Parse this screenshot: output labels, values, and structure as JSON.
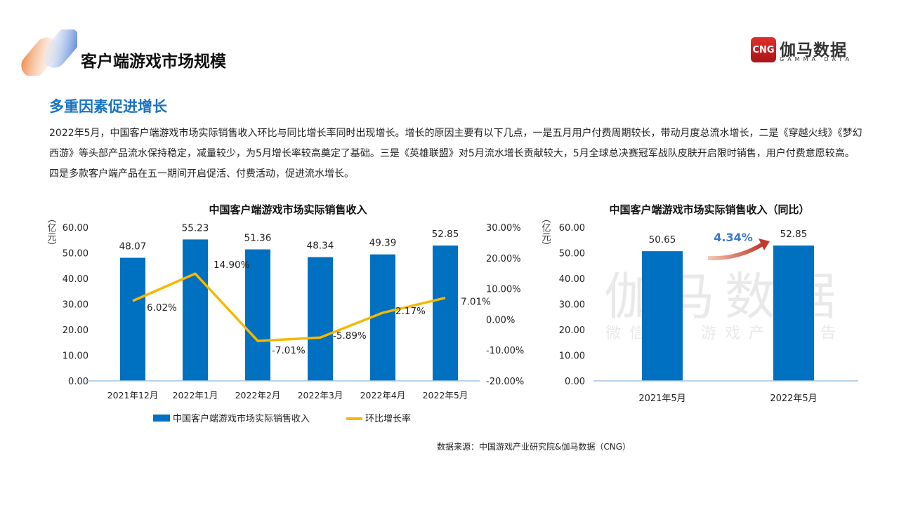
{
  "header": {
    "title": "客户端游戏市场规模",
    "logo_text": "伽马数据",
    "logo_sub": "GAMMA DATA",
    "logo_mark": "CNG"
  },
  "section": {
    "subtitle": "多重因素促进增长",
    "paragraph": "2022年5月，中国客户端游戏市场实际销售收入环比与同比增长率同时出现增长。增长的原因主要有以下几点，一是五月用户付费周期较长，带动月度总流水增长，二是《穿越火线》《梦幻西游》等头部产品流水保持稳定，减量较少，为5月增长率较高奠定了基础。三是《英雄联盟》对5月流水增长贡献较大，5月全球总决赛冠军战队皮肤开启限时销售，用户付费意愿较高。四是多款客户端产品在五一期间开启促活、付费活动，促进流水增长。"
  },
  "watermark": {
    "main": "伽马数据",
    "sub": "微信号：游戏产业报告"
  },
  "source": "数据来源：中国游戏产业研究院&伽马数据（CNG）",
  "colors": {
    "bar": "#0070c0",
    "line": "#f5b800",
    "axis": "#9dc3e6",
    "accent": "#1a73c0"
  },
  "chart_data": [
    {
      "type": "bar+line",
      "title": "中国客户端游戏市场实际销售收入",
      "ylabel": "（亿元）",
      "categories": [
        "2021年12月",
        "2022年1月",
        "2022年2月",
        "2022年3月",
        "2022年4月",
        "2022年5月"
      ],
      "ylim": [
        0,
        60
      ],
      "yticks": [
        "0.00",
        "10.00",
        "20.00",
        "30.00",
        "40.00",
        "50.00",
        "60.00"
      ],
      "y2lim": [
        -20,
        30
      ],
      "y2ticks": [
        "-20.00%",
        "-10.00%",
        "0.00%",
        "10.00%",
        "20.00%",
        "30.00%"
      ],
      "series": [
        {
          "name": "中国客户端游戏市场实际销售收入",
          "type": "bar",
          "values": [
            48.07,
            55.23,
            51.36,
            48.34,
            49.39,
            52.85
          ],
          "labels": [
            "48.07",
            "55.23",
            "51.36",
            "48.34",
            "49.39",
            "52.85"
          ]
        },
        {
          "name": "环比增长率",
          "type": "line",
          "axis": "right",
          "values": [
            6.02,
            14.9,
            -7.01,
            -5.89,
            2.17,
            7.01
          ],
          "labels": [
            "6.02%",
            "14.90%",
            "-7.01%",
            "-5.89%",
            "2.17%",
            "7.01%"
          ]
        }
      ],
      "legend": "bottom",
      "grid": false
    },
    {
      "type": "bar",
      "title": "中国客户端游戏市场实际销售收入（同比）",
      "ylabel": "（亿元）",
      "categories": [
        "2021年5月",
        "2022年5月"
      ],
      "values": [
        50.65,
        52.85
      ],
      "labels": [
        "50.65",
        "52.85"
      ],
      "ylim": [
        0,
        60
      ],
      "yticks": [
        "0.00",
        "10.00",
        "20.00",
        "30.00",
        "40.00",
        "50.00",
        "60.00"
      ],
      "annotation": "4.34%",
      "grid": false
    }
  ]
}
